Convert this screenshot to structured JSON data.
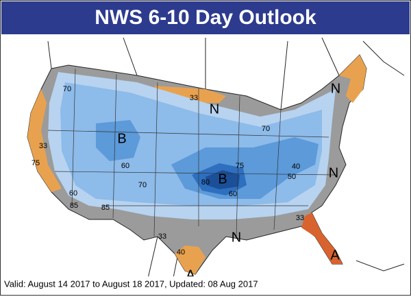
{
  "header": {
    "title": "NWS 6-10 Day Outlook"
  },
  "map": {
    "labels": [
      "70",
      "33",
      "N",
      "N",
      "B",
      "60",
      "70",
      "75",
      "B",
      "80",
      "60",
      "70",
      "40",
      "50",
      "N",
      "33",
      "N",
      "33",
      "40",
      "A",
      "A",
      "60",
      "85",
      "85",
      "33",
      "75"
    ]
  },
  "footer": {
    "text": "Valid: August 14 2017 to August 18 2017, Updated: 08 Aug 2017"
  }
}
